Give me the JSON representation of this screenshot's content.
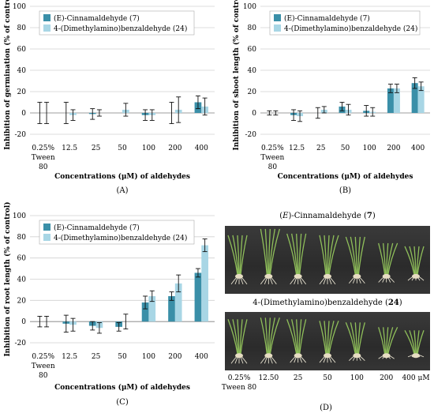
{
  "chart_data": [
    {
      "type": "bar",
      "panel_label": "(A)",
      "categories": [
        "0.25% Tween 80",
        "12.5",
        "25",
        "50",
        "100",
        "200",
        "400"
      ],
      "ylabel": "Inhibition of germination (% of control)",
      "xlabel": "Concentrations (μM) of aldehydes",
      "ylim": [
        -20,
        100
      ],
      "yticks": [
        -20,
        0,
        20,
        40,
        60,
        80,
        100
      ],
      "grid": true,
      "legend_position": "top-left",
      "series": [
        {
          "name": "(E)-Cinnamaldehyde (7)",
          "color": "#3a8fa8",
          "values": [
            0,
            0,
            -1,
            0,
            -2,
            0,
            10
          ],
          "errors": [
            10,
            10,
            5,
            0,
            5,
            10,
            6
          ]
        },
        {
          "name": "4-(Dimethylamino)benzaldehyde (24)",
          "color": "#a8d6e5",
          "values": [
            0,
            -2,
            0,
            3,
            -2,
            3,
            6
          ],
          "errors": [
            10,
            5,
            3,
            6,
            5,
            12,
            8
          ]
        }
      ]
    },
    {
      "type": "bar",
      "panel_label": "(B)",
      "categories": [
        "0.25% Tween 80",
        "12.5",
        "25",
        "50",
        "100",
        "200",
        "400"
      ],
      "ylabel": "Inhibition of shoot length (% of control)",
      "xlabel": "Concentrations (μM) of aldehydes",
      "ylim": [
        -20,
        100
      ],
      "yticks": [
        -20,
        0,
        20,
        40,
        60,
        80,
        100
      ],
      "grid": true,
      "legend_position": "top-left",
      "series": [
        {
          "name": "(E)-Cinnamaldehyde (7)",
          "color": "#3a8fa8",
          "values": [
            0,
            -2,
            0,
            6,
            2,
            23,
            28
          ],
          "errors": [
            2,
            5,
            5,
            4,
            5,
            4,
            5
          ]
        },
        {
          "name": "4-(Dimethylamino)benzaldehyde (24)",
          "color": "#a8d6e5",
          "values": [
            0,
            -3,
            3,
            3,
            1,
            23,
            25
          ],
          "errors": [
            2,
            5,
            3,
            5,
            4,
            4,
            4
          ]
        }
      ]
    },
    {
      "type": "bar",
      "panel_label": "(C)",
      "categories": [
        "0.25% Tween 80",
        "12.5",
        "25",
        "50",
        "100",
        "200",
        "400"
      ],
      "ylabel": "Inhibition of root length (% of control)",
      "xlabel": "Concentrations (μM) of aldehydes",
      "ylim": [
        -20,
        100
      ],
      "yticks": [
        -20,
        0,
        20,
        40,
        60,
        80,
        100
      ],
      "grid": true,
      "legend_position": "top-left",
      "series": [
        {
          "name": "(E)-Cinnamaldehyde (7)",
          "color": "#3a8fa8",
          "values": [
            0,
            -2,
            -4,
            -5,
            18,
            24,
            46
          ],
          "errors": [
            5,
            8,
            4,
            4,
            6,
            4,
            4
          ]
        },
        {
          "name": "4-(Dimethylamino)benzaldehyde (24)",
          "color": "#a8d6e5",
          "values": [
            0,
            -3,
            -6,
            0,
            24,
            36,
            72
          ],
          "errors": [
            5,
            6,
            5,
            7,
            5,
            8,
            6
          ]
        }
      ]
    }
  ],
  "photo_panel": {
    "panel_label": "(D)",
    "top_title": {
      "prefix": "(",
      "italic": "E",
      "middle": ")-Cinnamaldehyde (",
      "bold": "7",
      "suffix": ")"
    },
    "bottom_title": {
      "prefix": "4-(Dimethylamino)benzaldehyde (",
      "bold": "24",
      "suffix": ")"
    },
    "concentrations": [
      "0.25%\nTween 80",
      "12.50",
      "25",
      "50",
      "100",
      "200",
      "400 μM"
    ]
  }
}
